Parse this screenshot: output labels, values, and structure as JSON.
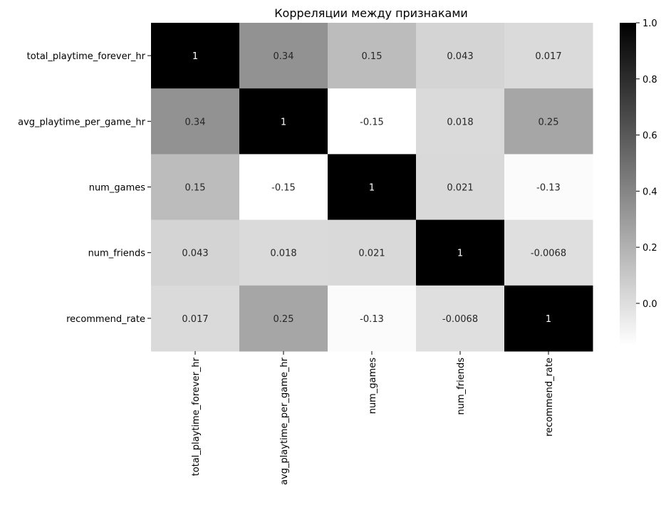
{
  "chart_data": {
    "type": "heatmap",
    "title": "Корреляции между признаками",
    "row_labels": [
      "total_playtime_forever_hr",
      "avg_playtime_per_game_hr",
      "num_games",
      "num_friends",
      "recommend_rate"
    ],
    "col_labels": [
      "total_playtime_forever_hr",
      "avg_playtime_per_game_hr",
      "num_games",
      "num_friends",
      "recommend_rate"
    ],
    "values": [
      [
        1,
        0.34,
        0.15,
        0.043,
        0.017
      ],
      [
        0.34,
        1,
        -0.15,
        0.018,
        0.25
      ],
      [
        0.15,
        -0.15,
        1,
        0.021,
        -0.13
      ],
      [
        0.043,
        0.018,
        0.021,
        1,
        -0.0068
      ],
      [
        0.017,
        0.25,
        -0.13,
        -0.0068,
        1
      ]
    ],
    "annotations": [
      [
        "1",
        "0.34",
        "0.15",
        "0.043",
        "0.017"
      ],
      [
        "0.34",
        "1",
        "-0.15",
        "0.018",
        "0.25"
      ],
      [
        "0.15",
        "-0.15",
        "1",
        "0.021",
        "-0.13"
      ],
      [
        "0.043",
        "0.018",
        "0.021",
        "1",
        "-0.0068"
      ],
      [
        "0.017",
        "0.25",
        "-0.13",
        "-0.0068",
        "1"
      ]
    ],
    "colormap": "Greys",
    "color_range": [
      -0.15,
      1.0
    ],
    "colorbar_ticks": [
      "0.0",
      "0.2",
      "0.4",
      "0.6",
      "0.8",
      "1.0"
    ],
    "colorbar_tick_values": [
      0.0,
      0.2,
      0.4,
      0.6,
      0.8,
      1.0
    ],
    "colors": {
      "low": "#ffffff",
      "high": "#000000",
      "text_dark": "#262626",
      "text_light": "#ffffff"
    }
  }
}
